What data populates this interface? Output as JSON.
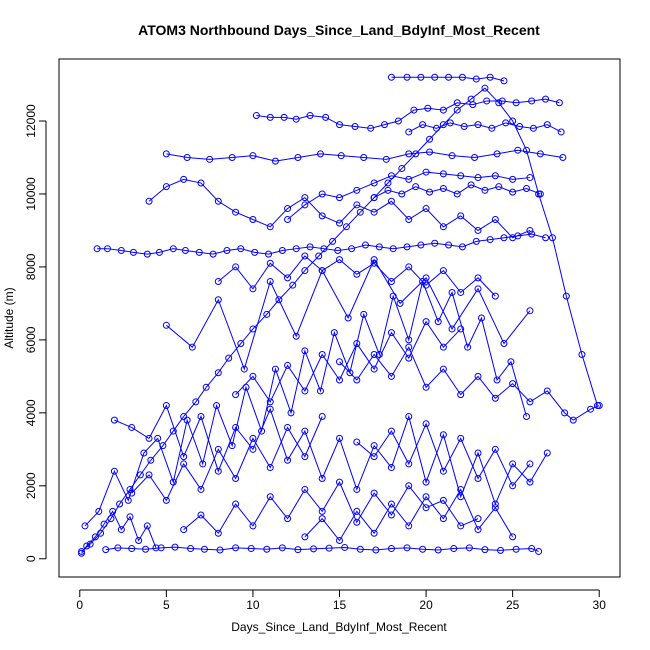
{
  "chart_data": {
    "type": "line",
    "markers": "open-circle",
    "title": "ATOM3 Northbound Days_Since_Land_BdyInf_Most_Recent",
    "xlabel": "Days_Since_Land_BdyInf_Most_Recent",
    "ylabel": "Altitude (m)",
    "xlim": [
      -1.2,
      31.2
    ],
    "ylim": [
      -500,
      13700
    ],
    "x_ticks": [
      "0",
      "5",
      "10",
      "15",
      "20",
      "25",
      "30"
    ],
    "y_ticks": [
      "0",
      "2000",
      "4000",
      "6000",
      "8000",
      "10000",
      "12000"
    ],
    "grid": false,
    "legend": "none",
    "series_color": "#0000ff",
    "series": [
      {
        "x": [
          0.1,
          0.6,
          1.2,
          1.8,
          2.3,
          2.9,
          3.5,
          4.1,
          4.8,
          5.4,
          6.0,
          6.7,
          7.3,
          8.0,
          8.6,
          9.3,
          10.0,
          10.8,
          11.5,
          12.3,
          13.0,
          13.8,
          14.6,
          15.4,
          16.2,
          17.0,
          17.8,
          18.6,
          19.4,
          20.2,
          21.0,
          21.8,
          22.6,
          23.4,
          24.2,
          25.0,
          25.8,
          26.5,
          27.3,
          28.1,
          29.0,
          29.9
        ],
        "y": [
          200,
          400,
          700,
          1100,
          1500,
          1900,
          2300,
          2700,
          3100,
          3500,
          3900,
          4300,
          4700,
          5100,
          5500,
          5900,
          6300,
          6700,
          7100,
          7500,
          7900,
          8300,
          8700,
          9100,
          9500,
          9900,
          10300,
          10700,
          11100,
          11500,
          11900,
          12300,
          12600,
          12900,
          12500,
          12000,
          11200,
          10000,
          8800,
          7200,
          5600,
          4200
        ]
      },
      {
        "x": [
          1.0,
          1.6,
          2.4,
          3.1,
          3.9,
          4.6,
          5.4,
          6.1,
          6.9,
          7.7,
          8.5,
          9.3,
          10.1,
          10.9,
          11.7,
          12.5,
          13.3,
          14.1,
          14.9,
          15.7,
          16.5,
          17.3,
          18.1,
          18.9,
          19.7,
          20.5,
          21.3,
          22.1,
          22.9,
          23.7,
          24.5,
          25.3,
          26.1,
          26.9
        ],
        "y": [
          8500,
          8500,
          8450,
          8400,
          8350,
          8400,
          8500,
          8450,
          8400,
          8350,
          8450,
          8500,
          8400,
          8350,
          8450,
          8500,
          8550,
          8500,
          8450,
          8500,
          8600,
          8550,
          8500,
          8550,
          8600,
          8650,
          8600,
          8550,
          8700,
          8750,
          8800,
          8850,
          8900,
          8800
        ]
      },
      {
        "x": [
          1.5,
          2.2,
          3.0,
          3.8,
          4.7,
          5.5,
          6.4,
          7.2,
          8.1,
          9.0,
          9.9,
          10.8,
          11.7,
          12.6,
          13.5,
          14.4,
          15.3,
          16.2,
          17.1,
          18.0,
          18.9,
          19.8,
          20.7,
          21.6,
          22.5,
          23.4,
          24.3,
          25.2,
          26.1,
          26.5
        ],
        "y": [
          250,
          300,
          280,
          260,
          300,
          320,
          280,
          260,
          240,
          300,
          280,
          260,
          300,
          250,
          270,
          290,
          310,
          260,
          240,
          280,
          300,
          260,
          240,
          280,
          300,
          250,
          230,
          260,
          280,
          200
        ]
      },
      {
        "x": [
          5.0,
          6.2,
          7.5,
          8.8,
          10.0,
          11.3,
          12.6,
          13.9,
          15.1,
          16.4,
          17.7,
          19.0,
          20.2,
          21.5,
          22.8,
          24.1,
          25.3,
          26.6,
          27.9
        ],
        "y": [
          11100,
          11000,
          10950,
          11000,
          11050,
          10900,
          11000,
          11100,
          11050,
          11000,
          10950,
          11100,
          11150,
          11050,
          11000,
          11100,
          11200,
          11100,
          11000
        ]
      },
      {
        "x": [
          10.2,
          11.0,
          11.8,
          12.5,
          13.3,
          14.2,
          15.0,
          15.9,
          16.8,
          17.6,
          18.4,
          19.3,
          20.1,
          21.0,
          21.8,
          22.7,
          23.5,
          24.4,
          25.2,
          26.1,
          26.9,
          27.7
        ],
        "y": [
          12150,
          12100,
          12100,
          12050,
          12150,
          12100,
          11900,
          11850,
          11800,
          11900,
          12000,
          12300,
          12350,
          12300,
          12500,
          12450,
          12550,
          12550,
          12500,
          12550,
          12600,
          12500
        ]
      },
      {
        "x": [
          18.0,
          18.9,
          19.7,
          20.5,
          21.3,
          22.1,
          22.9,
          23.7,
          24.5
        ],
        "y": [
          13200,
          13200,
          13200,
          13200,
          13200,
          13200,
          13150,
          13200,
          13100
        ]
      },
      {
        "x": [
          12.0,
          13.0,
          14.0,
          15.0,
          16.0,
          17.0,
          18.0,
          19.0,
          20.0,
          21.0,
          22.0,
          23.0,
          24.0,
          25.0,
          26.0
        ],
        "y": [
          9300,
          9700,
          10000,
          9900,
          10100,
          10300,
          10500,
          10400,
          10600,
          10550,
          10500,
          10450,
          10500,
          10400,
          10450
        ]
      },
      {
        "x": [
          0.3,
          1.1,
          2.0,
          2.8,
          3.7,
          4.5,
          5.4,
          6.2,
          7.1,
          7.9,
          8.8,
          9.6,
          10.5,
          11.3,
          12.2,
          13.0,
          13.9,
          14.7,
          15.6,
          16.4,
          17.3,
          18.1,
          19.0,
          19.8,
          20.7,
          21.5,
          22.4,
          23.2,
          24.1,
          24.9,
          25.8
        ],
        "y": [
          900,
          1300,
          2400,
          1600,
          2900,
          3300,
          2100,
          3800,
          2600,
          4200,
          3100,
          4700,
          3500,
          5200,
          4000,
          5700,
          4600,
          6200,
          5100,
          6700,
          5600,
          7200,
          6000,
          7600,
          6500,
          7300,
          5800,
          6600,
          4900,
          5400,
          3900
        ]
      },
      {
        "x": [
          2.0,
          3.0,
          4.0,
          5.0,
          6.0,
          7.0,
          8.0,
          9.0,
          10.0,
          11.0,
          12.0,
          13.0,
          14.0,
          15.0,
          16.0,
          17.0,
          18.0,
          19.0,
          20.0,
          21.0,
          22.0,
          23.0,
          24.0,
          25.0,
          26.0,
          27.0
        ],
        "y": [
          3800,
          3600,
          3300,
          4200,
          2800,
          3900,
          2400,
          3600,
          3000,
          4100,
          2700,
          3500,
          2200,
          3300,
          1900,
          3100,
          2500,
          3900,
          2100,
          3400,
          1700,
          2900,
          1500,
          2600,
          2100,
          2900
        ]
      },
      {
        "x": [
          4.0,
          5.0,
          6.0,
          7.0,
          8.0,
          9.0,
          10.0,
          11.0,
          12.0,
          13.0,
          14.0,
          15.0,
          16.0,
          17.0,
          18.0,
          19.0,
          20.0,
          21.0,
          22.0,
          23.0,
          24.0,
          25.0,
          26.0
        ],
        "y": [
          9800,
          10200,
          10400,
          10300,
          9800,
          9500,
          9300,
          9100,
          9600,
          9900,
          9400,
          9200,
          9700,
          9500,
          9800,
          9300,
          9600,
          9100,
          9400,
          9000,
          9300,
          8800,
          9000
        ]
      },
      {
        "x": [
          5.0,
          6.5,
          8.0,
          9.5,
          11.0,
          12.5,
          14.0,
          15.5,
          17.0,
          18.5,
          20.0,
          21.5,
          23.0,
          24.5,
          26.0
        ],
        "y": [
          6400,
          5800,
          7100,
          5200,
          7600,
          6100,
          7900,
          6600,
          8200,
          7000,
          7700,
          6300,
          7400,
          5900,
          6800
        ]
      },
      {
        "x": [
          6.0,
          7.0,
          8.0,
          9.0,
          10.0,
          11.0,
          12.0,
          13.0,
          14.0,
          15.0,
          16.0,
          17.0,
          18.0,
          19.0,
          20.0,
          21.0,
          22.0,
          23.0
        ],
        "y": [
          800,
          1200,
          700,
          1500,
          900,
          1700,
          1100,
          1900,
          1300,
          2100,
          1000,
          1800,
          1200,
          2000,
          1400,
          1600,
          900,
          1100
        ]
      },
      {
        "x": [
          15.0,
          16.0,
          17.0,
          18.0,
          19.0,
          20.0,
          21.0,
          22.0,
          23.0,
          24.0,
          25.0,
          26.0,
          27.0,
          28.0,
          28.5,
          29.5,
          30.0
        ],
        "y": [
          5400,
          4900,
          5600,
          5000,
          5800,
          4700,
          5200,
          4500,
          5000,
          4400,
          4800,
          4300,
          4600,
          4000,
          3800,
          4100,
          4200
        ]
      },
      {
        "x": [
          8.0,
          9.0,
          10.0,
          11.0,
          12.0,
          13.0,
          14.0,
          15.0,
          16.0,
          17.0,
          18.0,
          19.0,
          20.0,
          21.0,
          22.0,
          23.0,
          24.0
        ],
        "y": [
          7600,
          8000,
          7400,
          8100,
          7700,
          8300,
          7900,
          8200,
          7800,
          8100,
          7600,
          8000,
          7500,
          7900,
          7300,
          7700,
          7200
        ]
      },
      {
        "x": [
          0.1,
          0.4,
          0.9,
          1.4,
          1.9,
          2.4,
          2.9,
          3.4,
          3.9,
          4.4
        ],
        "y": [
          150,
          350,
          600,
          950,
          1300,
          800,
          1150,
          500,
          900,
          300
        ]
      },
      {
        "x": [
          19.0,
          19.8,
          20.6,
          21.4,
          22.2,
          23.0,
          23.8,
          24.6,
          25.4,
          26.2,
          27.0,
          27.8
        ],
        "y": [
          11700,
          11900,
          11800,
          11950,
          11850,
          11900,
          11800,
          11950,
          11850,
          11800,
          11900,
          11700
        ]
      },
      {
        "x": [
          16.0,
          17.0,
          18.0,
          19.0,
          20.0,
          21.0,
          22.0,
          23.0,
          24.0,
          25.0,
          26.0
        ],
        "y": [
          3200,
          2800,
          3500,
          2600,
          3700,
          2400,
          3300,
          2200,
          3000,
          2000,
          2600
        ]
      },
      {
        "x": [
          3.0,
          4.0,
          5.0,
          6.0,
          7.0,
          8.0,
          9.0,
          10.0,
          11.0,
          12.0,
          13.0,
          14.0
        ],
        "y": [
          1800,
          2300,
          1600,
          2600,
          1900,
          3000,
          2200,
          3300,
          2500,
          3600,
          2800,
          3900
        ]
      },
      {
        "x": [
          9.0,
          10.0,
          11.0,
          12.0,
          13.0,
          14.0,
          15.0,
          16.0,
          17.0,
          18.0,
          19.0,
          20.0,
          21.0,
          22.0
        ],
        "y": [
          4500,
          5000,
          4300,
          5300,
          4600,
          5600,
          4900,
          5900,
          5200,
          6200,
          5500,
          6500,
          5800,
          6300
        ]
      },
      {
        "x": [
          17.0,
          17.8,
          18.6,
          19.4,
          20.2,
          21.0,
          21.8,
          22.6,
          23.4,
          24.2,
          25.0,
          25.8,
          26.6
        ],
        "y": [
          9900,
          10100,
          10000,
          10200,
          10050,
          10150,
          10000,
          10250,
          10100,
          10200,
          10050,
          10150,
          10000
        ]
      },
      {
        "x": [
          13.0,
          14.0,
          15.0,
          16.0,
          17.0,
          18.0,
          19.0,
          20.0,
          21.0,
          22.0,
          23.0,
          24.0,
          25.0
        ],
        "y": [
          600,
          1100,
          500,
          1300,
          700,
          1500,
          900,
          1700,
          1100,
          1900,
          800,
          1400,
          600
        ]
      }
    ]
  }
}
